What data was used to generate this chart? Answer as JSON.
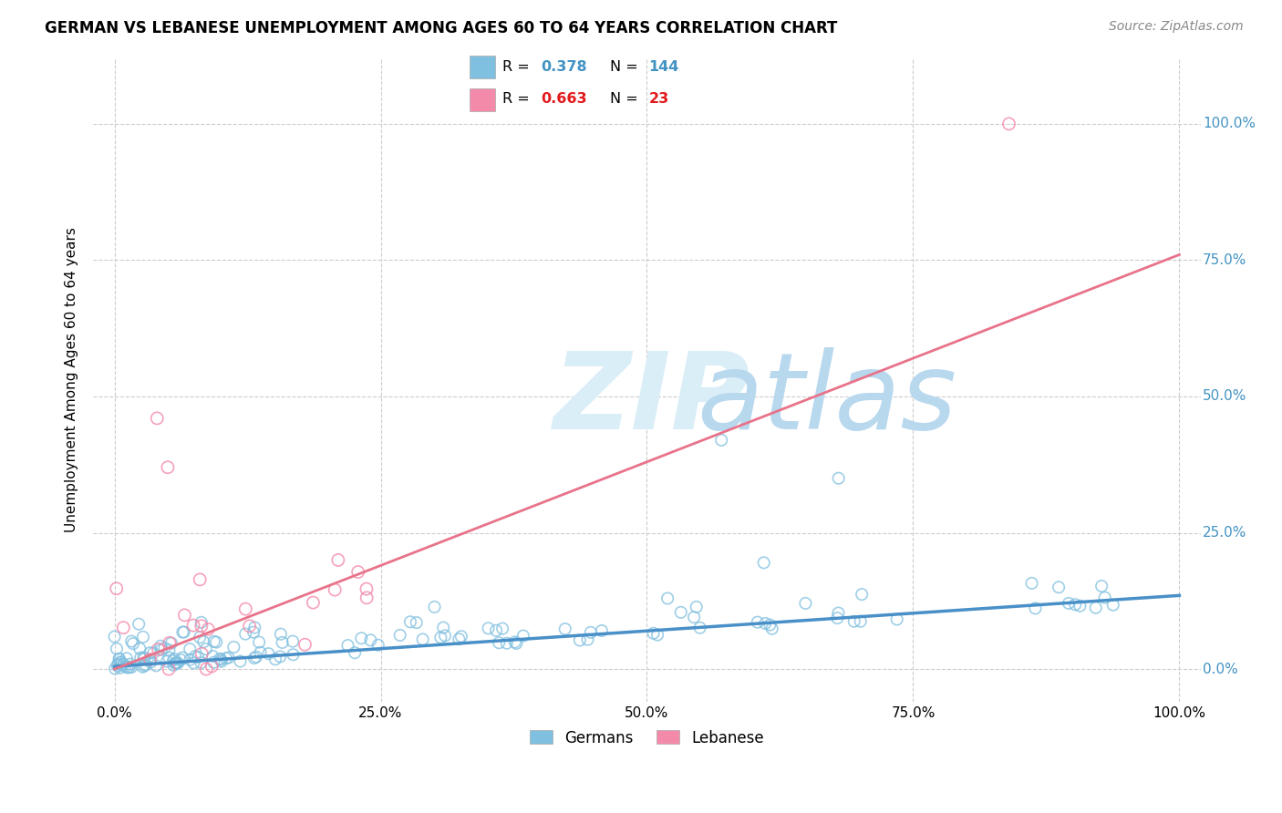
{
  "title": "GERMAN VS LEBANESE UNEMPLOYMENT AMONG AGES 60 TO 64 YEARS CORRELATION CHART",
  "source": "Source: ZipAtlas.com",
  "ylabel": "Unemployment Among Ages 60 to 64 years",
  "xlim": [
    -0.02,
    1.02
  ],
  "ylim": [
    -0.06,
    1.12
  ],
  "x_tick_labels": [
    "0.0%",
    "25.0%",
    "50.0%",
    "75.0%",
    "100.0%"
  ],
  "x_tick_positions": [
    0.0,
    0.25,
    0.5,
    0.75,
    1.0
  ],
  "y_tick_labels": [
    "0.0%",
    "25.0%",
    "50.0%",
    "75.0%",
    "100.0%"
  ],
  "y_tick_positions": [
    0.0,
    0.25,
    0.5,
    0.75,
    1.0
  ],
  "german_R": 0.378,
  "german_N": 144,
  "lebanese_R": 0.663,
  "lebanese_N": 23,
  "german_color": "#7fbfdf",
  "lebanese_color": "#f48aaa",
  "german_line_color": "#4a90c8",
  "lebanese_line_color": "#e8738a",
  "watermark_zip_color": "#daeef8",
  "watermark_atlas_color": "#b8d8ee",
  "legend_R_color_german": "#4393c3",
  "legend_R_color_lebanese": "#e31a1c",
  "legend_N_color_german": "#4393c3",
  "legend_N_color_lebanese": "#e31a1c",
  "background_color": "#ffffff",
  "grid_color": "#cccccc",
  "right_axis_label_color": "#4393c3",
  "german_trendline_x": [
    0.0,
    1.0
  ],
  "german_trendline_y": [
    0.005,
    0.135
  ],
  "lebanese_trendline_x": [
    0.0,
    1.0
  ],
  "lebanese_trendline_y": [
    0.0,
    0.76
  ]
}
